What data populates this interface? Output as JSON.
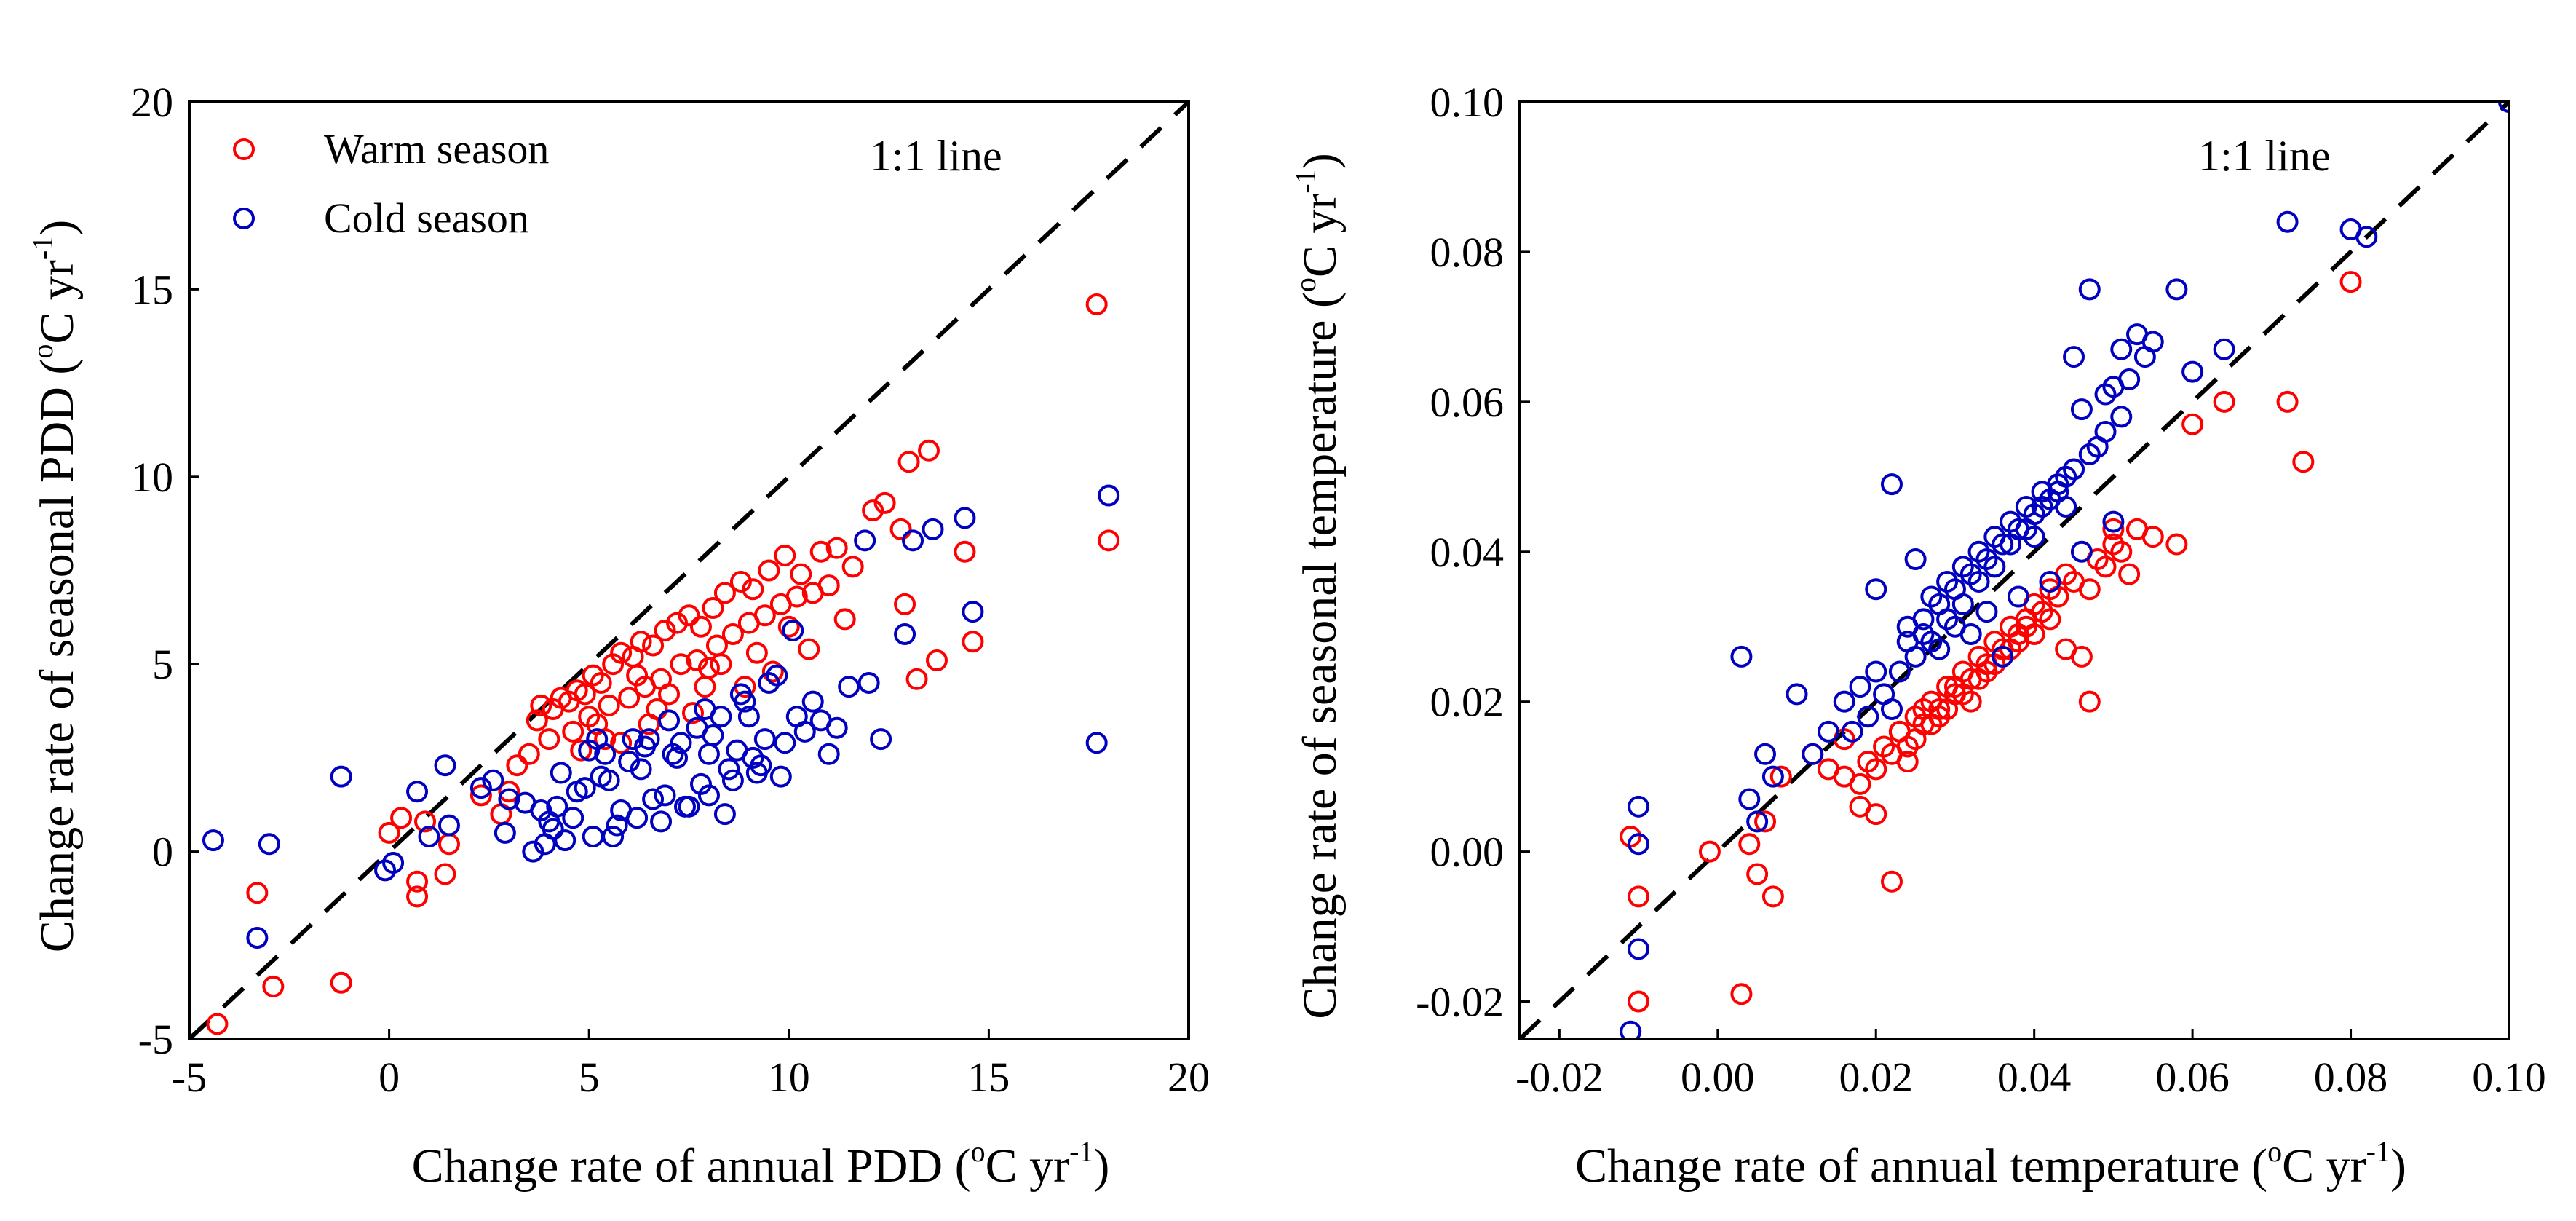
{
  "colors": {
    "warm": "#ff0000",
    "cold": "#0000c0",
    "line": "#000000"
  },
  "chart_data": [
    {
      "type": "scatter",
      "xlabel": "Change rate of annual PDD (",
      "ylabel": "Change rate of seasonal PDD (",
      "unit_degree": "o",
      "unit_main": "C yr",
      "unit_exp": "-1",
      "unit_close": ")",
      "xlim": [
        -5,
        20
      ],
      "ylim": [
        -5,
        20
      ],
      "xticks": [
        "-5",
        "0",
        "5",
        "10",
        "15",
        "20"
      ],
      "yticks": [
        "-5",
        "0",
        "5",
        "10",
        "15",
        "20"
      ],
      "annotation": "1:1 line",
      "legend": {
        "position": "top-left",
        "entries": [
          "Warm season",
          "Cold season"
        ]
      },
      "series": [
        {
          "name": "Warm season",
          "x": [
            -4.3,
            -3.3,
            -2.9,
            -1.2,
            0.0,
            0.3,
            0.7,
            0.7,
            0.9,
            1.5,
            1.4,
            2.3,
            2.8,
            3.5,
            3.7,
            3.8,
            4.1,
            4.3,
            4.5,
            4.7,
            4.9,
            5.1,
            5.3,
            5.6,
            5.8,
            6.1,
            6.3,
            6.6,
            6.9,
            7.2,
            7.5,
            7.8,
            8.1,
            8.4,
            8.8,
            9.1,
            9.5,
            9.9,
            10.3,
            10.8,
            11.2,
            11.6,
            12.1,
            12.4,
            12.8,
            12.9,
            13.0,
            13.2,
            13.5,
            13.7,
            14.4,
            14.6,
            17.7,
            18.0,
            4.0,
            4.6,
            5.0,
            5.5,
            6.0,
            6.4,
            6.8,
            7.3,
            7.7,
            8.2,
            8.6,
            9.0,
            9.4,
            9.8,
            10.2,
            10.6,
            11.0,
            5.2,
            6.2,
            7.0,
            8.0,
            9.2,
            10.0,
            3.2,
            3.0,
            5.8,
            6.5,
            7.6,
            8.9,
            9.6,
            10.5,
            11.4,
            4.8,
            5.4,
            6.7,
            7.9,
            8.3
          ],
          "y": [
            -4.6,
            -1.1,
            -3.6,
            -3.5,
            0.5,
            0.9,
            -0.8,
            -1.2,
            0.8,
            0.2,
            -0.6,
            1.5,
            1.0,
            2.6,
            3.5,
            3.9,
            3.8,
            4.1,
            4.0,
            4.3,
            4.2,
            4.7,
            4.5,
            5.0,
            5.3,
            5.2,
            5.6,
            5.5,
            5.9,
            6.1,
            6.3,
            6.0,
            6.5,
            6.9,
            7.2,
            7.0,
            7.5,
            7.9,
            7.4,
            8.0,
            8.1,
            7.6,
            9.1,
            9.3,
            8.6,
            6.6,
            10.4,
            4.6,
            10.7,
            5.1,
            8.0,
            5.6,
            14.6,
            8.3,
            3.0,
            3.2,
            3.6,
            3.9,
            4.1,
            4.4,
            4.6,
            5.0,
            5.1,
            5.5,
            5.8,
            6.1,
            6.3,
            6.6,
            6.8,
            6.9,
            7.1,
            3.4,
            4.7,
            4.2,
            4.9,
            5.3,
            6.0,
            2.3,
            1.6,
            2.9,
            3.4,
            3.7,
            4.4,
            4.8,
            5.4,
            6.2,
            2.7,
            3.0,
            3.8,
            4.4,
            5.0
          ]
        },
        {
          "name": "Cold season",
          "x": [
            -4.4,
            -3.3,
            -3.0,
            -1.2,
            -0.1,
            0.1,
            0.7,
            1.0,
            1.5,
            1.4,
            2.3,
            2.9,
            3.4,
            3.6,
            3.9,
            4.1,
            4.3,
            4.6,
            4.9,
            5.1,
            5.4,
            5.7,
            6.0,
            6.2,
            6.5,
            6.8,
            7.1,
            7.4,
            7.7,
            8.0,
            8.3,
            8.6,
            8.9,
            9.2,
            9.5,
            9.8,
            10.1,
            10.4,
            10.8,
            11.2,
            11.5,
            11.9,
            12.3,
            12.9,
            13.1,
            13.6,
            14.4,
            14.6,
            17.7,
            18.0,
            3.8,
            4.4,
            5.0,
            5.6,
            6.1,
            6.6,
            7.0,
            7.5,
            7.9,
            8.4,
            8.8,
            9.3,
            9.7,
            10.2,
            10.6,
            5.3,
            6.4,
            7.3,
            8.1,
            9.0,
            4.0,
            4.7,
            5.5,
            6.3,
            7.2,
            8.0,
            8.7,
            9.4,
            5.8,
            6.9,
            7.8,
            8.5,
            9.1,
            9.9,
            11.0,
            12.0,
            2.6,
            3.0,
            4.2,
            5.2
          ],
          "y": [
            0.3,
            -2.3,
            0.2,
            2.0,
            -0.5,
            -0.3,
            1.6,
            0.4,
            0.7,
            2.3,
            1.7,
            0.5,
            1.3,
            0.0,
            0.2,
            0.6,
            2.1,
            0.9,
            1.7,
            0.4,
            2.6,
            0.7,
            2.4,
            0.9,
            3.0,
            0.8,
            2.6,
            1.2,
            3.3,
            1.5,
            3.6,
            1.9,
            4.0,
            2.1,
            4.5,
            2.0,
            5.9,
            3.2,
            3.5,
            3.3,
            4.4,
            8.3,
            3.0,
            5.8,
            8.3,
            8.6,
            8.9,
            6.4,
            2.9,
            9.5,
            1.1,
            0.3,
            2.7,
            0.4,
            3.0,
            1.4,
            3.5,
            1.2,
            3.8,
            1.0,
            4.2,
            2.3,
            4.7,
            3.6,
            4.0,
            2.0,
            2.8,
            2.9,
            3.1,
            3.6,
            0.8,
            1.6,
            1.9,
            2.2,
            2.5,
            2.6,
            2.7,
            3.0,
            1.1,
            1.5,
            1.8,
            2.2,
            2.5,
            2.9,
            2.6,
            4.5,
            1.9,
            1.4,
            1.2,
            3.0
          ]
        }
      ]
    },
    {
      "type": "scatter",
      "xlabel": "Change rate of annual temperature (",
      "ylabel": "Change rate of seasonal temperature (",
      "unit_degree": "o",
      "unit_main": "C yr",
      "unit_exp": "-1",
      "unit_close": ")",
      "xlim": [
        -0.025,
        0.1
      ],
      "ylim": [
        -0.025,
        0.1
      ],
      "xticks": [
        "-0.02",
        "0.00",
        "0.02",
        "0.04",
        "0.06",
        "0.08",
        "0.10"
      ],
      "yticks": [
        "-0.02",
        "0.00",
        "0.02",
        "0.04",
        "0.06",
        "0.08",
        "0.10"
      ],
      "annotation": "1:1 line",
      "series": [
        {
          "name": "Warm season",
          "x": [
            -0.011,
            -0.01,
            -0.01,
            -0.001,
            0.003,
            0.004,
            0.005,
            0.006,
            0.007,
            0.008,
            0.012,
            0.014,
            0.016,
            0.018,
            0.019,
            0.02,
            0.021,
            0.022,
            0.023,
            0.024,
            0.025,
            0.026,
            0.027,
            0.028,
            0.029,
            0.03,
            0.031,
            0.032,
            0.033,
            0.034,
            0.035,
            0.036,
            0.037,
            0.038,
            0.039,
            0.04,
            0.041,
            0.042,
            0.043,
            0.044,
            0.045,
            0.046,
            0.047,
            0.048,
            0.049,
            0.05,
            0.051,
            0.052,
            0.053,
            0.055,
            0.058,
            0.06,
            0.064,
            0.072,
            0.074,
            0.08,
            0.018,
            0.02,
            0.022,
            0.025,
            0.027,
            0.029,
            0.031,
            0.033,
            0.035,
            0.037,
            0.039,
            0.041,
            0.043,
            0.016,
            0.019,
            0.023,
            0.026,
            0.03,
            0.034,
            0.038,
            0.042,
            0.047,
            0.05,
            0.053,
            0.024,
            0.028,
            0.032,
            0.036,
            0.04,
            0.044
          ],
          "y": [
            0.002,
            -0.006,
            -0.02,
            0.0,
            -0.019,
            0.001,
            -0.003,
            0.004,
            -0.006,
            0.01,
            0.013,
            0.011,
            0.015,
            0.006,
            0.012,
            0.005,
            0.014,
            -0.004,
            0.016,
            0.012,
            0.018,
            0.017,
            0.02,
            0.019,
            0.022,
            0.021,
            0.024,
            0.023,
            0.026,
            0.025,
            0.028,
            0.027,
            0.03,
            0.029,
            0.031,
            0.033,
            0.032,
            0.035,
            0.034,
            0.037,
            0.036,
            0.026,
            0.02,
            0.039,
            0.038,
            0.041,
            0.04,
            0.037,
            0.043,
            0.042,
            0.041,
            0.057,
            0.06,
            0.06,
            0.052,
            0.076,
            0.009,
            0.011,
            0.013,
            0.015,
            0.017,
            0.019,
            0.021,
            0.023,
            0.025,
            0.027,
            0.03,
            0.032,
            0.034,
            0.01,
            0.012,
            0.016,
            0.019,
            0.022,
            0.024,
            0.028,
            0.031,
            0.035,
            0.043,
            0.043,
            0.014,
            0.018,
            0.02,
            0.026,
            0.029,
            0.027
          ]
        },
        {
          "name": "Cold season",
          "x": [
            -0.011,
            -0.01,
            -0.01,
            -0.01,
            0.003,
            0.004,
            0.005,
            0.006,
            0.007,
            0.01,
            0.012,
            0.014,
            0.016,
            0.018,
            0.02,
            0.02,
            0.022,
            0.024,
            0.025,
            0.026,
            0.027,
            0.028,
            0.029,
            0.03,
            0.031,
            0.032,
            0.033,
            0.034,
            0.035,
            0.036,
            0.037,
            0.038,
            0.039,
            0.04,
            0.041,
            0.042,
            0.043,
            0.044,
            0.045,
            0.046,
            0.047,
            0.048,
            0.049,
            0.05,
            0.051,
            0.052,
            0.053,
            0.054,
            0.055,
            0.058,
            0.06,
            0.064,
            0.072,
            0.08,
            0.082,
            0.1,
            0.019,
            0.021,
            0.023,
            0.025,
            0.027,
            0.029,
            0.031,
            0.033,
            0.035,
            0.037,
            0.039,
            0.041,
            0.043,
            0.045,
            0.047,
            0.049,
            0.051,
            0.017,
            0.022,
            0.026,
            0.03,
            0.034,
            0.038,
            0.042,
            0.046,
            0.05,
            0.028,
            0.032,
            0.036,
            0.04,
            0.044,
            0.024
          ],
          "y": [
            -0.024,
            0.006,
            -0.013,
            0.001,
            0.026,
            0.007,
            0.004,
            0.013,
            0.01,
            0.021,
            0.013,
            0.016,
            0.02,
            0.022,
            0.035,
            0.024,
            0.049,
            0.03,
            0.039,
            0.031,
            0.034,
            0.033,
            0.036,
            0.035,
            0.038,
            0.037,
            0.04,
            0.039,
            0.042,
            0.041,
            0.044,
            0.043,
            0.046,
            0.045,
            0.048,
            0.047,
            0.049,
            0.05,
            0.066,
            0.059,
            0.075,
            0.054,
            0.061,
            0.062,
            0.067,
            0.063,
            0.069,
            0.066,
            0.068,
            0.075,
            0.064,
            0.067,
            0.084,
            0.083,
            0.082,
            0.1,
            0.018,
            0.021,
            0.024,
            0.026,
            0.028,
            0.031,
            0.033,
            0.036,
            0.038,
            0.041,
            0.043,
            0.046,
            0.048,
            0.051,
            0.053,
            0.056,
            0.058,
            0.016,
            0.019,
            0.029,
            0.03,
            0.032,
            0.034,
            0.036,
            0.04,
            0.044,
            0.027,
            0.029,
            0.026,
            0.042,
            0.046,
            0.028
          ]
        }
      ]
    }
  ]
}
